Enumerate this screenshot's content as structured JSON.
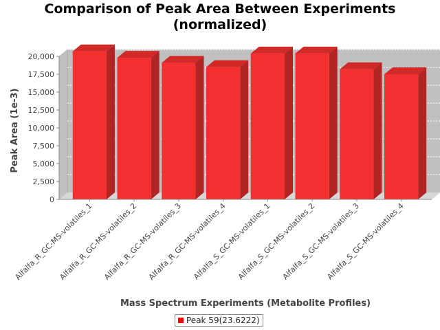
{
  "chart_data": {
    "type": "bar",
    "title_line1": "Comparison of Peak Area Between Experiments",
    "title_line2": "(normalized)",
    "xlabel": "Mass Spectrum Experiments (Metabolite Profiles)",
    "ylabel": "Peak Area (1e-3)",
    "categories": [
      "Alfalfa_R_GC-MS-volatiles_1",
      "Alfalfa_R_GC-MS-volatiles_2",
      "Alfalfa_R_GC-MS-volatiles_3",
      "Alfalfa_R_GC-MS-volatiles_4",
      "Alfalfa_S_GC-MS-volatiles_1",
      "Alfalfa_S_GC-MS-volatiles_2",
      "Alfalfa_S_GC-MS-volatiles_3",
      "Alfalfa_S_GC-MS-volatiles_4"
    ],
    "series": [
      {
        "name": "Peak 59(23.6222)",
        "values": [
          20700,
          19800,
          19100,
          18500,
          20400,
          20400,
          18200,
          17500
        ]
      }
    ],
    "ylim": [
      0,
      21000
    ],
    "yticks": [
      0,
      2500,
      5000,
      7500,
      10000,
      12500,
      15000,
      17500,
      20000
    ],
    "ytick_labels": [
      "0",
      "2,500",
      "5,000",
      "7,500",
      "10,000",
      "12,500",
      "15,000",
      "17,500",
      "20,000"
    ],
    "grid": true,
    "legend_position": "bottom",
    "colors": {
      "bar_front": "#f42f2f",
      "bar_side": "#b32424",
      "bar_top": "#d12828",
      "plot_back": "#c0c0c0",
      "plot_floor": "#d8d8d8",
      "grid": "#ffffff",
      "legend_swatch": "#ff0000"
    }
  }
}
